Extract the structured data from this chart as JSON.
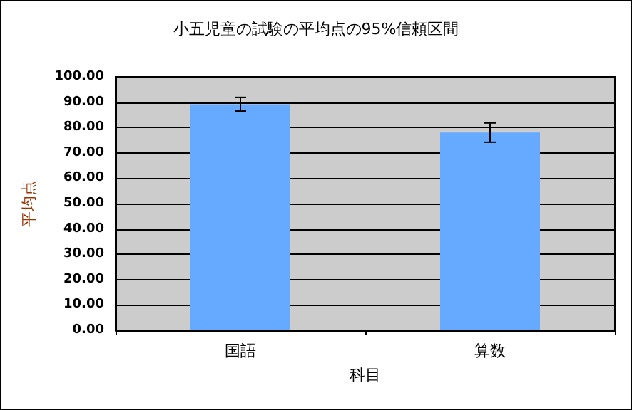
{
  "chart_data": {
    "type": "bar",
    "title": "小五児童の試験の平均点の95%信頼区間",
    "xlabel": "科目",
    "ylabel": "平均点",
    "categories": [
      "国語",
      "算数"
    ],
    "values": [
      89.2,
      78.0
    ],
    "errors": [
      2.7,
      3.8
    ],
    "color": "#66aaff",
    "ylim": [
      0,
      100
    ],
    "yticks": [
      {
        "value": 0,
        "label": "0.00"
      },
      {
        "value": 10,
        "label": "10.00"
      },
      {
        "value": 20,
        "label": "20.00"
      },
      {
        "value": 30,
        "label": "30.00"
      },
      {
        "value": 40,
        "label": "40.00"
      },
      {
        "value": 50,
        "label": "50.00"
      },
      {
        "value": 60,
        "label": "60.00"
      },
      {
        "value": 70,
        "label": "70.00"
      },
      {
        "value": 80,
        "label": "80.00"
      },
      {
        "value": 90,
        "label": "90.00"
      },
      {
        "value": 100,
        "label": "100.00"
      }
    ],
    "grid": "y"
  }
}
